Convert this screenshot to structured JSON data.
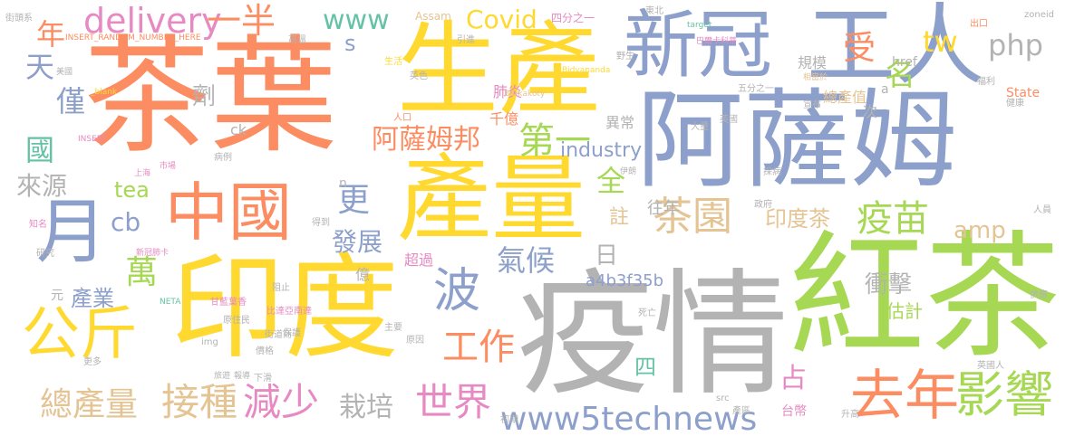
{
  "word_cloud": {
    "words": [
      {
        "text": "茶葉",
        "color": "#fc8d62"
      },
      {
        "text": "阿薩姆",
        "color": "#8da0cb"
      },
      {
        "text": "生產",
        "color": "#ffd92f"
      },
      {
        "text": "新冠",
        "color": "#8da0cb"
      },
      {
        "text": "工人",
        "color": "#8da0cb"
      },
      {
        "text": "產量",
        "color": "#ffd92f"
      },
      {
        "text": "中國",
        "color": "#fc8d62"
      },
      {
        "text": "月",
        "color": "#8da0cb"
      },
      {
        "text": "印度",
        "color": "#ffd92f"
      },
      {
        "text": "疫情",
        "color": "#b3b3b3"
      },
      {
        "text": "紅茶",
        "color": "#a6d854"
      },
      {
        "text": "公斤",
        "color": "#ffd92f"
      },
      {
        "text": "去年",
        "color": "#fc8d62"
      },
      {
        "text": "影響",
        "color": "#a6d854"
      },
      {
        "text": "接種",
        "color": "#e5c494"
      },
      {
        "text": "減少",
        "color": "#e78ac3"
      },
      {
        "text": "世界",
        "color": "#e78ac3"
      },
      {
        "text": "www5technews",
        "color": "#8da0cb"
      },
      {
        "text": "總產量",
        "color": "#e5c494"
      },
      {
        "text": "栽培",
        "color": "#b3b3b3"
      },
      {
        "text": "波",
        "color": "#8da0cb"
      },
      {
        "text": "工作",
        "color": "#fc8d62"
      },
      {
        "text": "茶園",
        "color": "#e5c494"
      },
      {
        "text": "疫苗",
        "color": "#a6d854"
      },
      {
        "text": "阿薩姆邦",
        "color": "#fc8d62"
      },
      {
        "text": "第一",
        "color": "#a6d854"
      },
      {
        "text": "delivery",
        "color": "#e78ac3"
      },
      {
        "text": "一半",
        "color": "#fc8d62"
      },
      {
        "text": "www",
        "color": "#66c2a5"
      },
      {
        "text": "Covid",
        "color": "#ffd92f"
      },
      {
        "text": "php",
        "color": "#b3b3b3"
      },
      {
        "text": "tw",
        "color": "#ffd92f"
      },
      {
        "text": "受",
        "color": "#fc8d62"
      },
      {
        "text": "名",
        "color": "#a6d854"
      },
      {
        "text": "國",
        "color": "#66c2a5"
      },
      {
        "text": "僅",
        "color": "#8da0cb"
      },
      {
        "text": "天",
        "color": "#8da0cb"
      },
      {
        "text": "年",
        "color": "#fc8d62"
      },
      {
        "text": "來源",
        "color": "#b3b3b3"
      },
      {
        "text": "cb",
        "color": "#8da0cb"
      },
      {
        "text": "萬",
        "color": "#a6d854"
      },
      {
        "text": "產業",
        "color": "#8da0cb"
      },
      {
        "text": "更",
        "color": "#8da0cb"
      },
      {
        "text": "發展",
        "color": "#8da0cb"
      },
      {
        "text": "氣候",
        "color": "#8da0cb"
      },
      {
        "text": "全",
        "color": "#a6d854"
      },
      {
        "text": "日",
        "color": "#b3b3b3"
      },
      {
        "text": "印度茶",
        "color": "#e5c494"
      },
      {
        "text": "amp",
        "color": "#e5c494"
      },
      {
        "text": "衝擊",
        "color": "#b3b3b3"
      },
      {
        "text": "估計",
        "color": "#a6d854"
      },
      {
        "text": "industry",
        "color": "#8da0cb"
      },
      {
        "text": "a4b3f35b",
        "color": "#8da0cb"
      },
      {
        "text": "往年",
        "color": "#b3b3b3"
      },
      {
        "text": "註",
        "color": "#e5c494"
      },
      {
        "text": "占",
        "color": "#e78ac3"
      },
      {
        "text": "四",
        "color": "#66c2a5"
      },
      {
        "text": "劑",
        "color": "#b3b3b3"
      },
      {
        "text": "tea",
        "color": "#a6d854"
      },
      {
        "text": "s",
        "color": "#8da0cb"
      },
      {
        "text": "肺炎",
        "color": "#e78ac3"
      },
      {
        "text": "千億",
        "color": "#fc8d62"
      },
      {
        "text": "異常",
        "color": "#b3b3b3"
      },
      {
        "text": "規模",
        "color": "#b3b3b3"
      },
      {
        "text": "總產值",
        "color": "#e5c494"
      },
      {
        "text": "href",
        "color": "#b3b3b3"
      },
      {
        "text": "State",
        "color": "#fc8d62"
      },
      {
        "text": "次",
        "color": "#b3b3b3"
      },
      {
        "text": "a",
        "color": "#b3b3b3"
      },
      {
        "text": "超過",
        "color": "#e78ac3"
      },
      {
        "text": "億",
        "color": "#b3b3b3"
      },
      {
        "text": "元",
        "color": "#b3b3b3"
      },
      {
        "text": "ck",
        "color": "#b3b3b3"
      },
      {
        "text": "n",
        "color": "#b3b3b3"
      },
      {
        "text": "台幣",
        "color": "#e78ac3"
      },
      {
        "text": "Assam",
        "color": "#e5c494"
      },
      {
        "text": "四分之一",
        "color": "#e78ac3"
      },
      {
        "text": "東北",
        "color": "#b3b3b3"
      },
      {
        "text": "出口",
        "color": "#fc8d62"
      },
      {
        "text": "zoneid",
        "color": "#b3b3b3"
      },
      {
        "text": "target",
        "color": "#66c2a5"
      },
      {
        "text": "巴爾卡科蒂",
        "color": "#e78ac3"
      },
      {
        "text": "相當於",
        "color": "#e5c494"
      },
      {
        "text": "INSERT_RANDOM_NUMBER_HERE",
        "color": "#fc8d62"
      },
      {
        "text": "_blank",
        "color": "#ffd92f"
      },
      {
        "text": "Barkakoty",
        "color": "#e5c494"
      },
      {
        "text": "Bidyananda",
        "color": "#ffd92f"
      },
      {
        "text": "五分之一",
        "color": "#b3b3b3"
      },
      {
        "text": "NETA",
        "color": "#66c2a5"
      },
      {
        "text": "甘藍葉香",
        "color": "#e78ac3"
      },
      {
        "text": "原住民",
        "color": "#b3b3b3"
      },
      {
        "text": "新冠肺卡",
        "color": "#e78ac3"
      },
      {
        "text": "街道商",
        "color": "#b3b3b3"
      },
      {
        "text": "高溫",
        "color": "#b3b3b3"
      },
      {
        "text": "英色",
        "color": "#b3b3b3"
      },
      {
        "text": "生活",
        "color": "#ffd92f"
      },
      {
        "text": "人口",
        "color": "#fc8d62"
      },
      {
        "text": "阻止",
        "color": "#b3b3b3"
      },
      {
        "text": "健康",
        "color": "#b3b3b3"
      },
      {
        "text": "福利",
        "color": "#b3b3b3"
      },
      {
        "text": "宣布",
        "color": "#b3b3b3"
      },
      {
        "text": "img",
        "color": "#b3b3b3"
      },
      {
        "text": "src",
        "color": "#b3b3b3"
      },
      {
        "text": "價格",
        "color": "#b3b3b3"
      },
      {
        "text": "英國人",
        "color": "#b3b3b3"
      },
      {
        "text": "政府",
        "color": "#b3b3b3"
      },
      {
        "text": "供應",
        "color": "#b3b3b3"
      },
      {
        "text": "人員",
        "color": "#b3b3b3"
      },
      {
        "text": "病例",
        "color": "#b3b3b3"
      },
      {
        "text": "市場",
        "color": "#e78ac3"
      },
      {
        "text": "死亡",
        "color": "#b3b3b3"
      },
      {
        "text": "更多",
        "color": "#b3b3b3"
      },
      {
        "text": "初期",
        "color": "#b3b3b3"
      },
      {
        "text": "伊朗",
        "color": "#b3b3b3"
      },
      {
        "text": "升高",
        "color": "#b3b3b3"
      },
      {
        "text": "英國",
        "color": "#b3b3b3"
      },
      {
        "text": "野生",
        "color": "#b3b3b3"
      },
      {
        "text": "引進",
        "color": "#b3b3b3"
      },
      {
        "text": "報導",
        "color": "#b3b3b3"
      },
      {
        "text": "得到",
        "color": "#b3b3b3"
      },
      {
        "text": "保護",
        "color": "#b3b3b3"
      },
      {
        "text": "下滑",
        "color": "#b3b3b3"
      },
      {
        "text": "旅遊",
        "color": "#b3b3b3"
      },
      {
        "text": "探病",
        "color": "#b3b3b3"
      },
      {
        "text": "原因",
        "color": "#b3b3b3"
      },
      {
        "text": "主要",
        "color": "#b3b3b3"
      },
      {
        "text": "大量",
        "color": "#b3b3b3"
      },
      {
        "text": "知名",
        "color": "#e78ac3"
      },
      {
        "text": "上海",
        "color": "#e78ac3"
      },
      {
        "text": "INSERT",
        "color": "#e78ac3"
      },
      {
        "text": "街頭系",
        "color": "#b3b3b3"
      },
      {
        "text": "美國",
        "color": "#b3b3b3"
      },
      {
        "text": "研究",
        "color": "#b3b3b3"
      },
      {
        "text": "產區",
        "color": "#b3b3b3"
      },
      {
        "text": "比達亞南達",
        "color": "#e78ac3"
      }
    ]
  }
}
